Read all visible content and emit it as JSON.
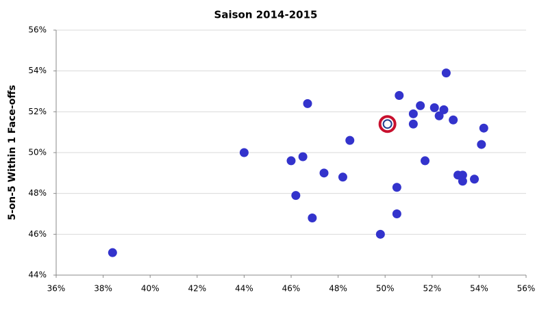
{
  "chart_data": {
    "type": "scatter",
    "title": "Saison 2014-2015",
    "y_label": "5-on-5 Within 1 Face-offs",
    "series": [
      {
        "color": "#3333cc",
        "x": [
          38.4,
          44.0,
          46.0,
          46.5,
          46.7,
          46.2,
          46.9,
          47.4,
          48.2,
          48.5,
          49.8,
          50.5,
          50.5,
          50.6,
          51.2,
          51.2,
          51.5,
          51.7,
          52.1,
          52.3,
          52.5,
          52.6,
          52.9,
          53.1,
          53.3,
          53.3,
          53.8,
          54.1,
          54.2
        ],
        "values": [
          45.1,
          50.0,
          49.6,
          49.8,
          52.4,
          47.9,
          46.8,
          49.0,
          48.8,
          50.6,
          46.0,
          48.3,
          47.0,
          52.8,
          51.9,
          51.4,
          52.3,
          49.6,
          52.2,
          51.8,
          52.1,
          53.9,
          51.6,
          48.9,
          48.9,
          48.6,
          48.7,
          50.4,
          51.2
        ]
      },
      {
        "color": "#c8102e",
        "x": [
          50.1
        ],
        "values": [
          51.4
        ]
      }
    ],
    "xlim": [
      36,
      56
    ],
    "xticks": [
      {
        "value": 36,
        "label": "36%"
      },
      {
        "value": 38,
        "label": "38%"
      },
      {
        "value": 40,
        "label": "40%"
      },
      {
        "value": 42,
        "label": "42%"
      },
      {
        "value": 44,
        "label": "44%"
      },
      {
        "value": 46,
        "label": "46%"
      },
      {
        "value": 48,
        "label": "48%"
      },
      {
        "value": 50,
        "label": "50%"
      },
      {
        "value": 52,
        "label": "52%"
      },
      {
        "value": 54,
        "label": "54%"
      },
      {
        "value": 56,
        "label": "56%"
      }
    ],
    "ylim": [
      44,
      56
    ],
    "yticks": [
      {
        "value": 44,
        "label": "44%"
      },
      {
        "value": 46,
        "label": "46%"
      },
      {
        "value": 48,
        "label": "48%"
      },
      {
        "value": 50,
        "label": "50%"
      },
      {
        "value": 52,
        "label": "52%"
      },
      {
        "value": 54,
        "label": "54%"
      },
      {
        "value": 56,
        "label": "56%"
      }
    ],
    "grid": true
  }
}
